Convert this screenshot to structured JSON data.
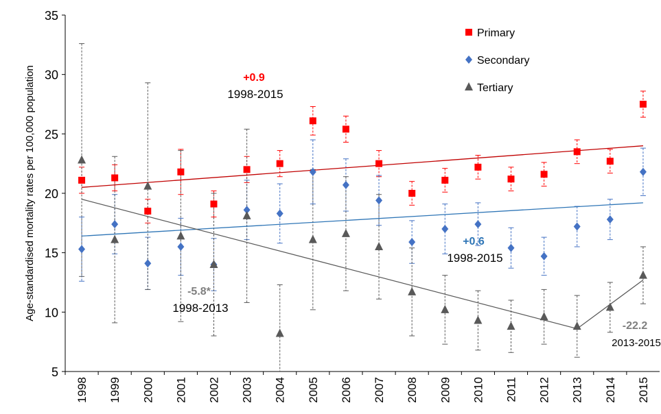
{
  "chart_data": {
    "type": "scatter",
    "ylabel": "Age-standardised mortality rates per 100,000 population",
    "categories": [
      "1998",
      "1999",
      "2000",
      "2001",
      "2002",
      "2003",
      "2004",
      "2005",
      "2006",
      "2007",
      "2008",
      "2009",
      "2010",
      "2011",
      "2012",
      "2013",
      "2014",
      "2015"
    ],
    "ylim": [
      5,
      35
    ],
    "yticks": [
      5,
      10,
      15,
      20,
      25,
      30,
      35
    ],
    "series": [
      {
        "name": "Primary",
        "color": "#ff0000",
        "marker": "square",
        "values": [
          21.1,
          21.3,
          18.5,
          21.8,
          19.1,
          22.0,
          22.5,
          26.1,
          25.4,
          22.5,
          20.0,
          21.1,
          22.2,
          21.2,
          21.6,
          23.5,
          22.7,
          27.5
        ],
        "errors": [
          1.1,
          1.1,
          1.0,
          1.9,
          1.1,
          1.1,
          1.1,
          1.2,
          1.1,
          1.1,
          1.0,
          1.0,
          1.0,
          1.0,
          1.0,
          1.0,
          1.0,
          1.1
        ]
      },
      {
        "name": "Secondary",
        "color": "#4472c4",
        "marker": "diamond",
        "values": [
          15.3,
          17.4,
          14.1,
          15.5,
          14.0,
          18.6,
          18.3,
          21.8,
          20.7,
          19.4,
          15.9,
          17.0,
          17.4,
          15.4,
          14.7,
          17.2,
          17.8,
          21.8
        ],
        "errors": [
          2.7,
          2.5,
          2.2,
          2.4,
          2.2,
          2.5,
          2.5,
          2.7,
          2.2,
          2.1,
          1.8,
          2.1,
          1.8,
          1.7,
          1.6,
          1.7,
          1.7,
          2.0
        ]
      },
      {
        "name": "Tertiary",
        "color": "#595959",
        "marker": "triangle",
        "values": [
          22.8,
          16.1,
          20.6,
          16.4,
          14.0,
          18.1,
          8.2,
          16.1,
          16.6,
          15.5,
          11.7,
          10.2,
          9.3,
          8.8,
          9.6,
          8.8,
          10.4,
          13.1
        ],
        "errors": [
          9.8,
          7.0,
          8.7,
          7.2,
          6.0,
          7.3,
          4.1,
          5.9,
          4.8,
          4.4,
          3.7,
          2.9,
          2.5,
          2.2,
          2.3,
          2.6,
          2.1,
          2.4
        ]
      }
    ],
    "trendlines": [
      {
        "color": "#c00000",
        "x": [
          "1998",
          "2015"
        ],
        "values": [
          20.5,
          24.0
        ]
      },
      {
        "color": "#2e75b6",
        "x": [
          "1998",
          "2015"
        ],
        "values": [
          16.4,
          19.2
        ]
      },
      {
        "color": "#595959",
        "x": [
          "1998",
          "2013",
          "2015"
        ],
        "values": [
          19.5,
          8.6,
          12.7
        ]
      }
    ],
    "annotations": [
      {
        "text": "+0.9",
        "color": "#ff0000",
        "period": "1998-2015"
      },
      {
        "text": "+0.6",
        "color": "#2e75b6",
        "period": "1998-2015"
      },
      {
        "text": "-5.8*",
        "color": "#7f7f7f",
        "period": "1998-2013"
      },
      {
        "text": "-22.2",
        "color": "#7f7f7f",
        "period": "2013-2015"
      }
    ],
    "legend": "top-right"
  }
}
